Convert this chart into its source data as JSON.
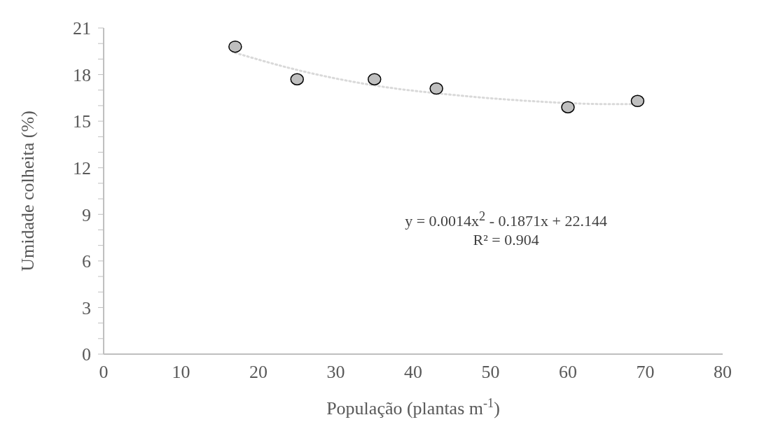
{
  "chart_data": {
    "type": "scatter",
    "xlabel": "População (plantas m$^{-1}$)",
    "ylabel": "Umidade colheita (%)",
    "xlim": [
      0,
      80
    ],
    "xticks": [
      0,
      10,
      20,
      30,
      40,
      50,
      60,
      70,
      80
    ],
    "ylim": [
      0,
      21
    ],
    "yticks": [
      0,
      {
        "value": 1,
        "label": null
      },
      {
        "value": 2,
        "label": null
      },
      3,
      {
        "value": 4,
        "label": null
      },
      {
        "value": 5,
        "label": null
      },
      6,
      {
        "value": 7,
        "label": null
      },
      {
        "value": 8,
        "label": null
      },
      9,
      {
        "value": 10,
        "label": null
      },
      {
        "value": 11,
        "label": null
      },
      12,
      {
        "value": 13,
        "label": null
      },
      {
        "value": 14,
        "label": null
      },
      15,
      {
        "value": 16,
        "label": null
      },
      {
        "value": 17,
        "label": null
      },
      18,
      {
        "value": 19,
        "label": null
      },
      {
        "value": 20,
        "label": null
      },
      21
    ],
    "grid": false,
    "legend": false,
    "series": [
      {
        "type": "scatter",
        "color": "#bfbfbf",
        "marker": "circle",
        "x": [
          17,
          25,
          35,
          43,
          60,
          69
        ],
        "values": [
          19.8,
          17.7,
          17.7,
          17.1,
          15.9,
          16.3
        ]
      },
      {
        "type": "line",
        "color": "#d9d9d9",
        "line_style": "dotted",
        "marker": "none",
        "x": [
          17,
          25,
          35,
          45,
          55,
          65,
          69
        ],
        "values": [
          19.4,
          18.3,
          17.3,
          16.7,
          16.3,
          16.1,
          16.1
        ]
      }
    ],
    "annotations": [
      "y = 0.0014x$^{2}$ - 0.1871x + 22.144",
      "R² = 0.904"
    ]
  }
}
